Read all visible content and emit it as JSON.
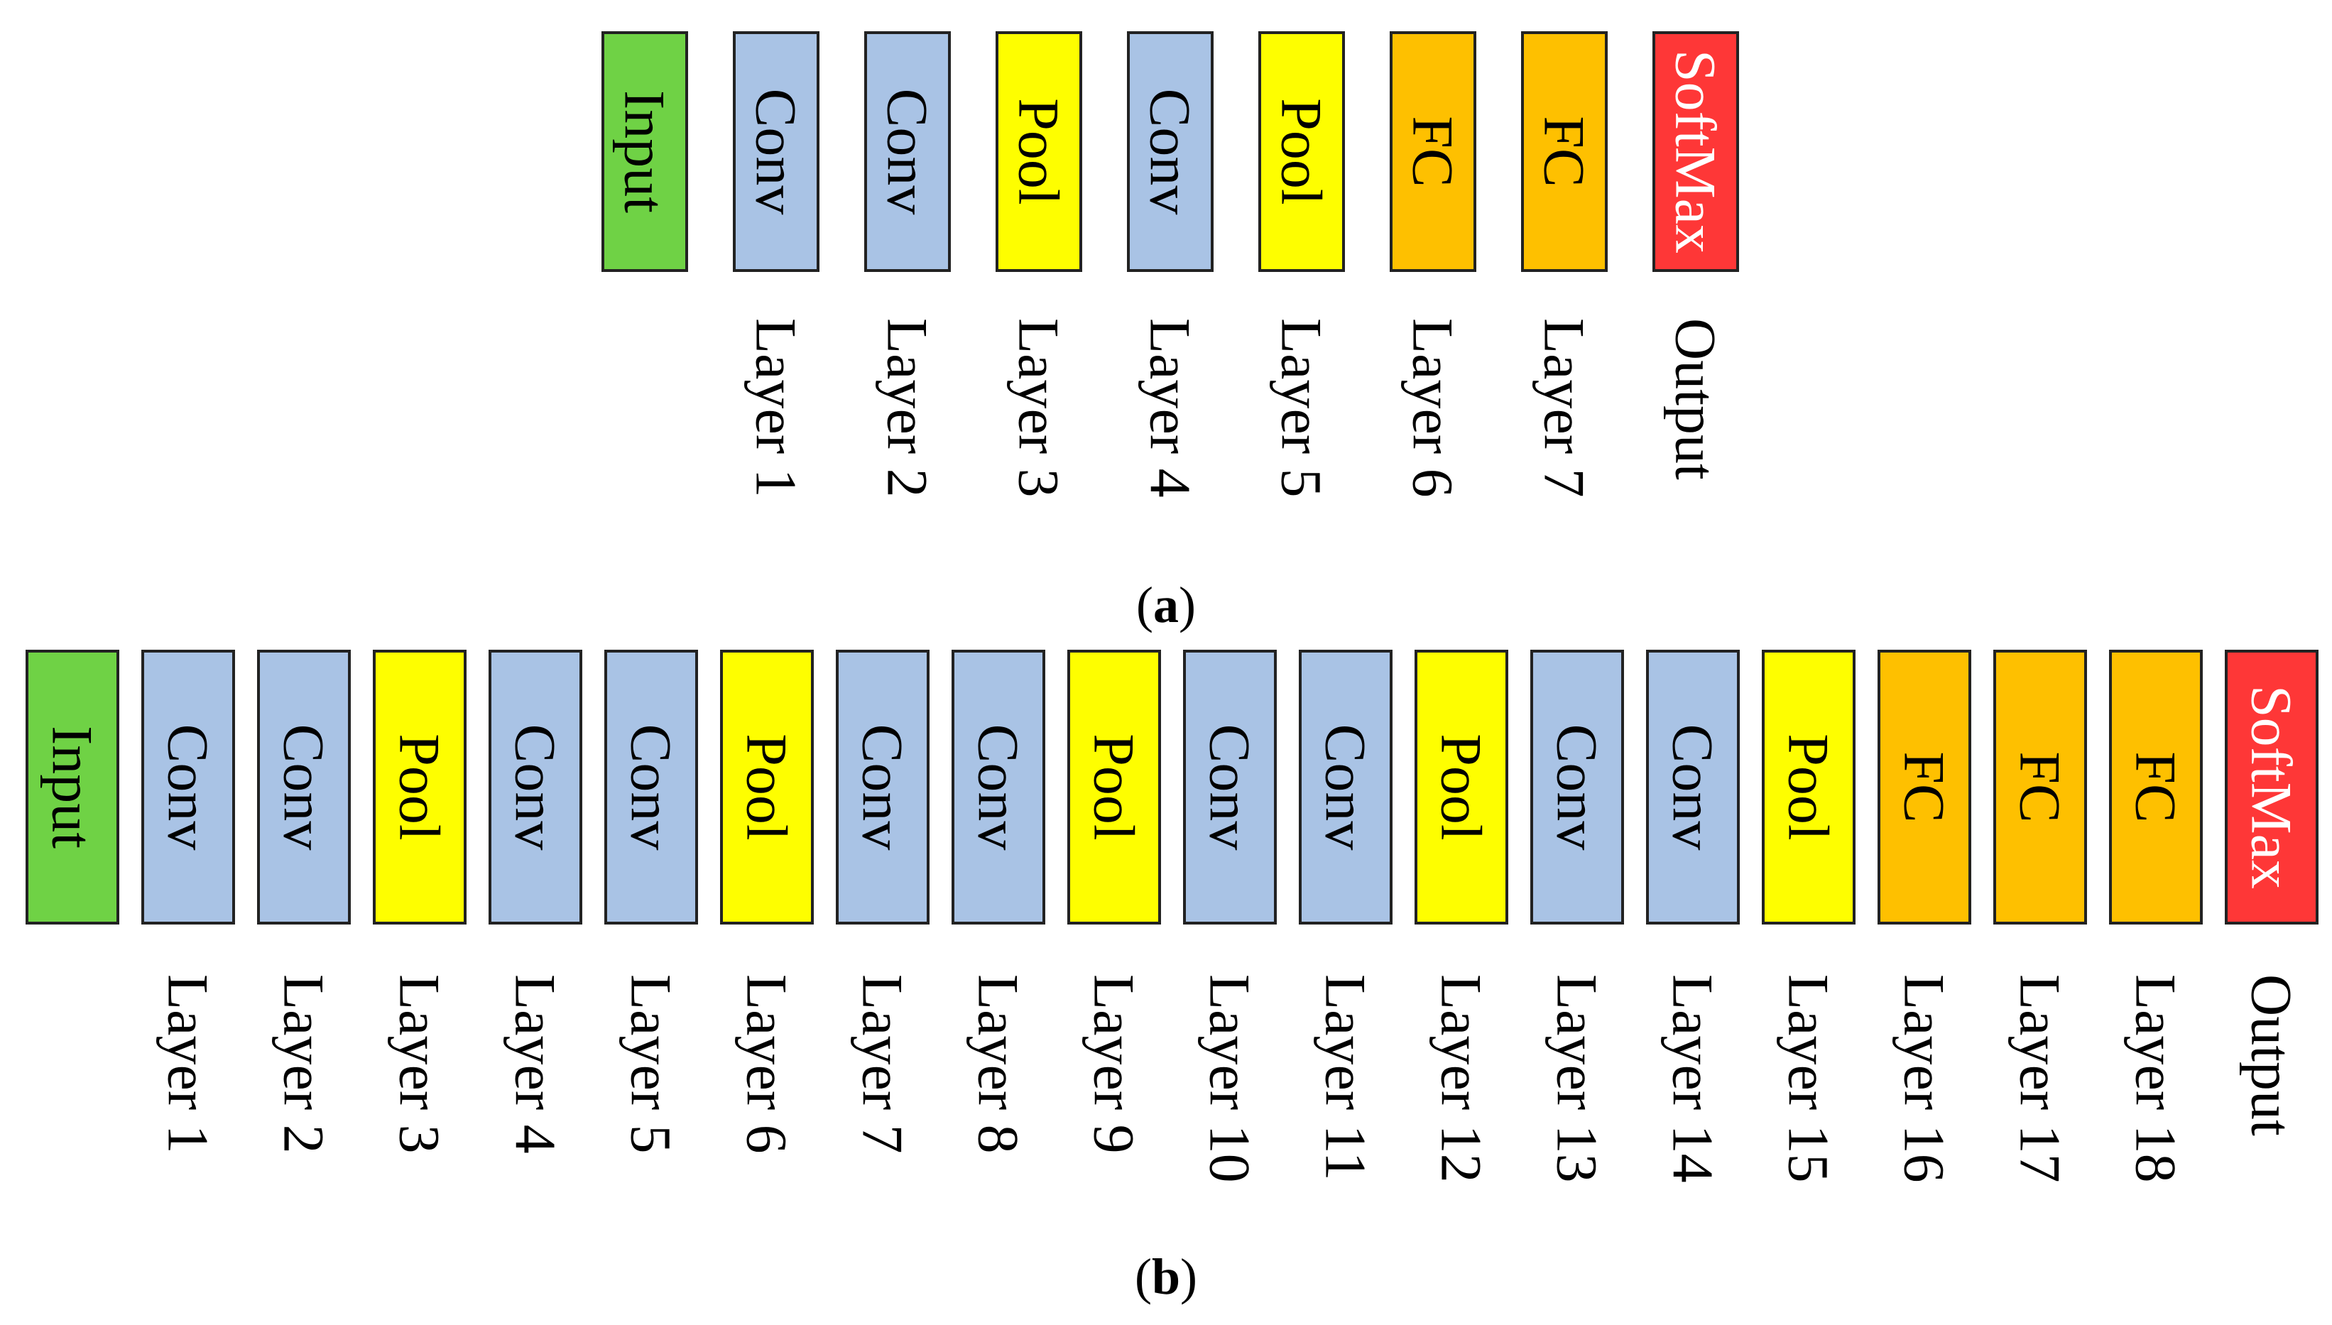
{
  "colors": {
    "input": "#6fd245",
    "conv": "#a9c3e5",
    "pool": "#fefe00",
    "fc": "#fec000",
    "softmax": "#fe3737",
    "border": "#222222",
    "text": "#000000",
    "softmax_text": "#ffffff"
  },
  "diagrams": [
    {
      "caption": {
        "open": "(",
        "letter": "a",
        "close": ")"
      },
      "blocks": [
        {
          "kind": "input",
          "label": "Input",
          "layer": ""
        },
        {
          "kind": "conv",
          "label": "Conv",
          "layer": "Layer 1"
        },
        {
          "kind": "conv",
          "label": "Conv",
          "layer": "Layer 2"
        },
        {
          "kind": "pool",
          "label": "Pool",
          "layer": "Layer 3"
        },
        {
          "kind": "conv",
          "label": "Conv",
          "layer": "Layer 4"
        },
        {
          "kind": "pool",
          "label": "Pool",
          "layer": "Layer 5"
        },
        {
          "kind": "fc",
          "label": "FC",
          "layer": "Layer 6"
        },
        {
          "kind": "fc",
          "label": "FC",
          "layer": "Layer 7"
        },
        {
          "kind": "softmax",
          "label": "SoftMax",
          "layer": "Output"
        }
      ]
    },
    {
      "caption": {
        "open": "(",
        "letter": "b",
        "close": ")"
      },
      "blocks": [
        {
          "kind": "input",
          "label": "Input",
          "layer": ""
        },
        {
          "kind": "conv",
          "label": "Conv",
          "layer": "Layer 1"
        },
        {
          "kind": "conv",
          "label": "Conv",
          "layer": "Layer 2"
        },
        {
          "kind": "pool",
          "label": "Pool",
          "layer": "Layer 3"
        },
        {
          "kind": "conv",
          "label": "Conv",
          "layer": "Layer 4"
        },
        {
          "kind": "conv",
          "label": "Conv",
          "layer": "Layer 5"
        },
        {
          "kind": "pool",
          "label": "Pool",
          "layer": "Layer 6"
        },
        {
          "kind": "conv",
          "label": "Conv",
          "layer": "Layer 7"
        },
        {
          "kind": "conv",
          "label": "Conv",
          "layer": "Layer 8"
        },
        {
          "kind": "pool",
          "label": "Pool",
          "layer": "Layer 9"
        },
        {
          "kind": "conv",
          "label": "Conv",
          "layer": "Layer 10"
        },
        {
          "kind": "conv",
          "label": "Conv",
          "layer": "Layer 11"
        },
        {
          "kind": "pool",
          "label": "Pool",
          "layer": "Layer 12"
        },
        {
          "kind": "conv",
          "label": "Conv",
          "layer": "Layer 13"
        },
        {
          "kind": "conv",
          "label": "Conv",
          "layer": "Layer 14"
        },
        {
          "kind": "pool",
          "label": "Pool",
          "layer": "Layer 15"
        },
        {
          "kind": "fc",
          "label": "FC",
          "layer": "Layer 16"
        },
        {
          "kind": "fc",
          "label": "FC",
          "layer": "Layer 17"
        },
        {
          "kind": "fc",
          "label": "FC",
          "layer": "Layer 18"
        },
        {
          "kind": "softmax",
          "label": "SoftMax",
          "layer": "Output"
        }
      ]
    }
  ]
}
